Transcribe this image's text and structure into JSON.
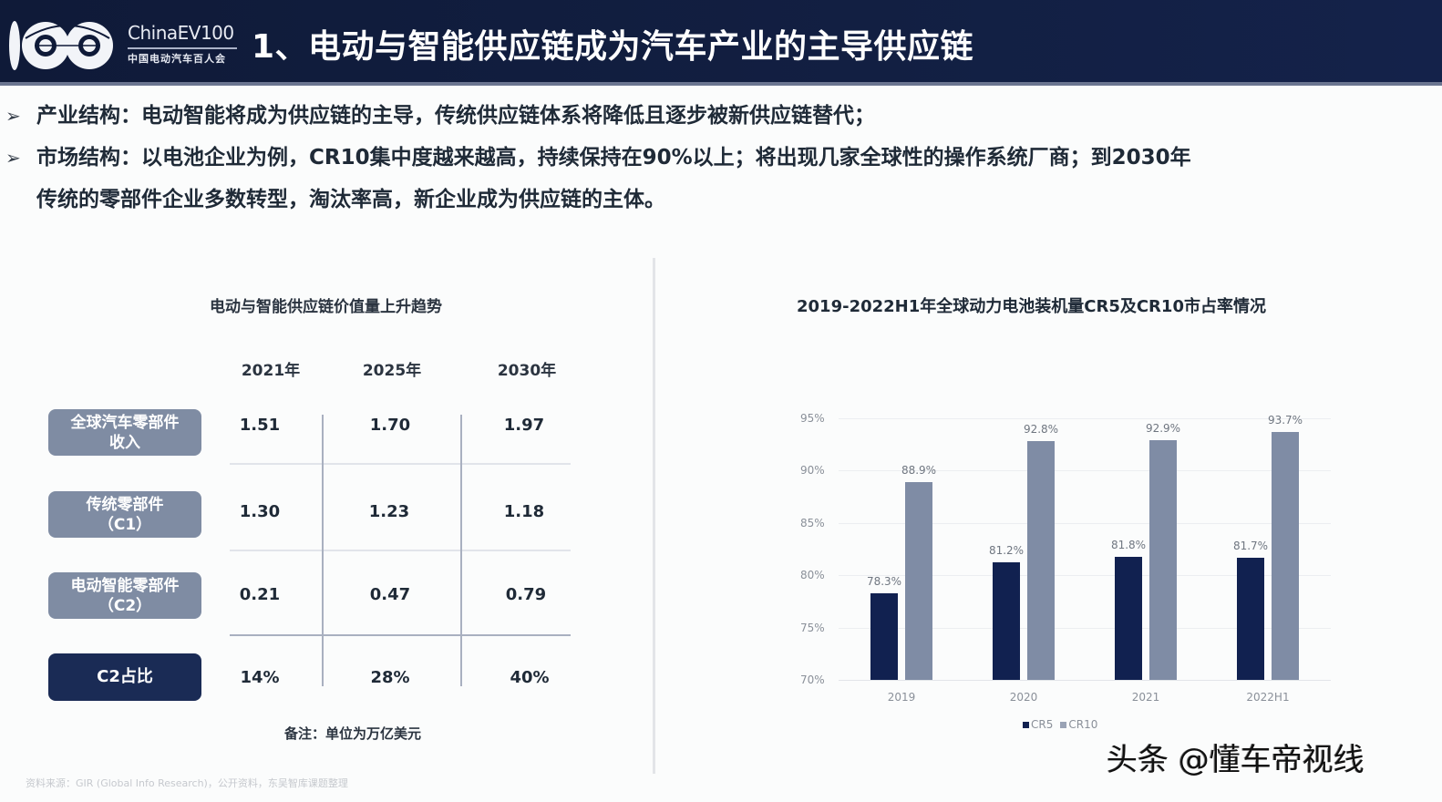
{
  "header": {
    "logo_en": "ChinaEV100",
    "logo_cn": "中国电动汽车百人会",
    "title": "1、电动与智能供应链成为汽车产业的主导供应链"
  },
  "bullets": [
    {
      "icon": "arrow-right-icon",
      "text": "产业结构：电动智能将成为供应链的主导，传统供应链体系将降低且逐步被新供应链替代；"
    },
    {
      "icon": "arrow-right-icon",
      "text": "市场结构：以电池企业为例，CR10集中度越来越高，持续保持在90%以上；将出现几家全球性的操作系统厂商；到2030年",
      "continuation": "传统的零部件企业多数转型，淘汰率高，新企业成为供应链的主体。"
    }
  ],
  "left_table": {
    "title": "电动与智能供应链价值量上升趋势",
    "columns": [
      "2021年",
      "2025年",
      "2030年"
    ],
    "rows": [
      {
        "label_line1": "全球汽车零部件",
        "label_line2": "收入",
        "values": [
          "1.51",
          "1.70",
          "1.97"
        ]
      },
      {
        "label_line1": "传统零部件",
        "label_line2": "（C1）",
        "values": [
          "1.30",
          "1.23",
          "1.18"
        ]
      },
      {
        "label_line1": "电动智能零部件",
        "label_line2": "（C2）",
        "values": [
          "0.21",
          "0.47",
          "0.79"
        ]
      },
      {
        "label_line1": "C2占比",
        "label_line2": "",
        "values": [
          "14%",
          "28%",
          "40%"
        ]
      }
    ],
    "note": "备注：单位为万亿美元",
    "source": "资料来源：GIR (Global Info Research)，公开资料，东吴智库课题整理"
  },
  "chart_data": {
    "type": "bar",
    "title": "2019-2022H1年全球动力电池装机量CR5及CR10市占率情况",
    "categories": [
      "2019",
      "2020",
      "2021",
      "2022H1"
    ],
    "series": [
      {
        "name": "CR5",
        "values": [
          78.3,
          81.2,
          81.8,
          81.7
        ],
        "labels": [
          "78.3%",
          "81.2%",
          "81.8%",
          "81.7%"
        ],
        "color": "#112150"
      },
      {
        "name": "CR10",
        "values": [
          88.9,
          92.8,
          92.9,
          93.7
        ],
        "labels": [
          "88.9%",
          "92.8%",
          "92.9%",
          "93.7%"
        ],
        "color": "#7f8ca5"
      }
    ],
    "y_ticks": [
      "95%",
      "90%",
      "85%",
      "80%",
      "75%",
      "70%"
    ],
    "ylim": [
      70,
      95
    ],
    "xlabel": "",
    "ylabel": "",
    "grid": true,
    "legend_position": "bottom"
  },
  "watermark": "头条 @懂车帝视线"
}
